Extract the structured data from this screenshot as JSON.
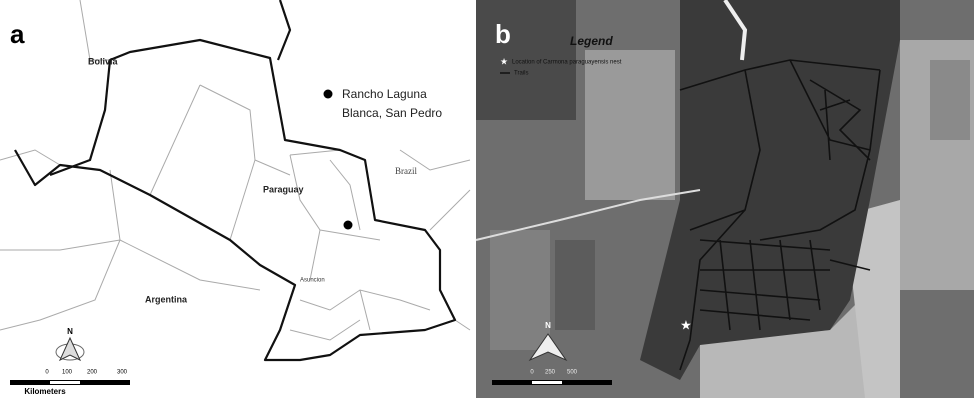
{
  "panel_a": {
    "label": "a",
    "places": [
      "Bolivia",
      "Paraguay",
      "Brazil",
      "Argentina",
      "Asuncion"
    ],
    "site_name": [
      "Rancho Laguna",
      "Blanca, San Pedro"
    ],
    "north": "N",
    "scale_ticks": [
      "0",
      "100",
      "200",
      "300"
    ],
    "scale_unit": "Kilometers"
  },
  "panel_b": {
    "label": "b",
    "legend_title": "Legend",
    "legend_items": [
      "Location of Carmona paraguayensis nest",
      "Trails"
    ],
    "north": "N",
    "scale_ticks": [
      "0",
      "250",
      "500"
    ]
  }
}
